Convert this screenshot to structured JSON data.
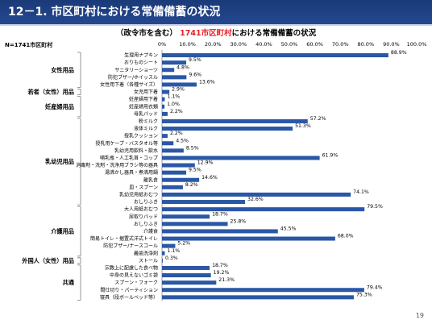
{
  "page": {
    "title": "12－1. 市区町村における常備備蓄の状況",
    "n_label": "N=1741市区町村",
    "page_number": "19"
  },
  "colors": {
    "bar": "#2a57a6",
    "header": "#1f3f80",
    "highlight": "#e8202a"
  },
  "chart_data": {
    "type": "bar",
    "orientation": "horizontal",
    "title_prefix": "（政令市を含む）",
    "title_highlight": "1741市区町村",
    "title_suffix": "における常備備蓄の状況",
    "xlim": [
      0,
      100
    ],
    "ticks": [
      0,
      10,
      20,
      30,
      40,
      50,
      60,
      70,
      80,
      90,
      100
    ],
    "tick_labels": [
      "0%",
      "10.0%",
      "20.0%",
      "30.0%",
      "40.0%",
      "50.0%",
      "60.0%",
      "70.0%",
      "80.0%",
      "90.0%",
      "100.0%"
    ],
    "grid": false,
    "categories": [
      "生理用ナプキン",
      "おりものシート",
      "サニタリーショーツ",
      "防犯ブザー/ホイッスル",
      "女性用下着（各種サイズ）",
      "女児用下着",
      "妊産婦用下着",
      "妊産婦用衣類",
      "母乳パッド",
      "粉ミルク",
      "液体ミルク",
      "授乳クッション",
      "授乳用ケープ・バスタオル等",
      "乳幼児用飲料・飲水",
      "哺乳瓶・人工乳首・コップ",
      "消毒剤・洗剤・洗浄用ブラシ等の器具",
      "湯沸かし器具・煮沸用鍋",
      "離乳食",
      "皿・スプーン",
      "乳幼児用紙おむつ",
      "おしりふき",
      "大人用紙おむつ",
      "尿取りパッド",
      "おしりふき",
      "介護食",
      "簡易トイレ・据置式洋式トイレ",
      "防犯ブザー/ナースコール",
      "義歯洗浄剤",
      "ストール",
      "宗教上に配慮した食べ物",
      "中身の見えないゴミ袋",
      "スプーン・フォーク",
      "間仕切り・パーティション",
      "寝具（段ボールベッド等）"
    ],
    "values": [
      88.9,
      9.5,
      4.8,
      9.6,
      13.6,
      2.9,
      1.1,
      1.0,
      2.2,
      57.2,
      51.3,
      2.2,
      4.5,
      8.5,
      61.9,
      12.9,
      9.5,
      14.6,
      8.2,
      74.1,
      32.6,
      79.5,
      18.7,
      25.8,
      45.5,
      68.0,
      5.2,
      1.1,
      0.3,
      18.7,
      19.2,
      21.3,
      79.4,
      75.3
    ],
    "value_labels": [
      "88.9%",
      "9.5%",
      "4.8%",
      "9.6%",
      "13.6%",
      "2.9%",
      "1.1%",
      "1.0%",
      "2.2%",
      "57.2%",
      "51.3%",
      "2.2%",
      "4.5%",
      "8.5%",
      "61.9%",
      "12.9%",
      "9.5%",
      "14.6%",
      "8.2%",
      "74.1%",
      "32.6%",
      "79.5%",
      "18.7%",
      "25.8%",
      "45.5%",
      "68.0%",
      "5.2%",
      "1.1%",
      "0.3%",
      "18.7%",
      "19.2%",
      "21.3%",
      "79.4%",
      "75.3%"
    ],
    "groups": [
      {
        "label": "女性用品",
        "start": 0,
        "end": 4
      },
      {
        "label": "若者（女性）用品",
        "start": 5,
        "end": 5
      },
      {
        "label": "妊産婦用品",
        "start": 6,
        "end": 8
      },
      {
        "label": "乳幼児用品",
        "start": 9,
        "end": 20
      },
      {
        "label": "介護用品",
        "start": 21,
        "end": 27
      },
      {
        "label": "外国人（女性）用品",
        "start": 28,
        "end": 28
      },
      {
        "label": "共通",
        "start": 29,
        "end": 33
      }
    ]
  }
}
